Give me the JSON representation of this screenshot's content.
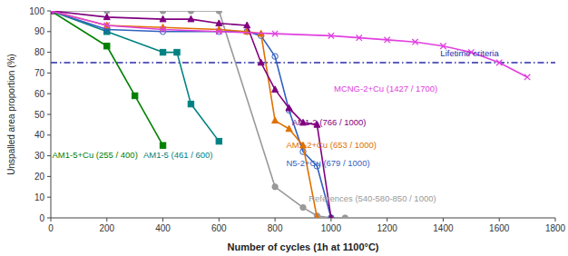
{
  "chart_data": {
    "type": "line",
    "xlabel": "Number of cycles (1h at 1100°C)",
    "ylabel": "Unspalled area proportion (%)",
    "xlim": [
      0,
      1800
    ],
    "ylim": [
      0,
      100
    ],
    "xticks": [
      0,
      200,
      400,
      600,
      800,
      1000,
      1200,
      1400,
      1600,
      1800
    ],
    "yticks": [
      0,
      10,
      20,
      30,
      40,
      50,
      60,
      70,
      80,
      90,
      100
    ],
    "grid": false,
    "series": [
      {
        "color": "#008000",
        "marker": "square",
        "x": [
          0,
          200,
          300,
          400
        ],
        "values": [
          100,
          83,
          59,
          35
        ]
      },
      {
        "color": "#008080",
        "marker": "square",
        "x": [
          0,
          200,
          400,
          450,
          500,
          600
        ],
        "values": [
          100,
          90,
          80,
          80,
          55,
          37
        ]
      },
      {
        "color": "#999999",
        "marker": "circle",
        "x": [
          0,
          200,
          400,
          500,
          600,
          800,
          900,
          950,
          1000,
          1050
        ],
        "values": [
          100,
          100,
          100,
          100,
          100,
          15,
          5,
          1,
          0,
          0
        ]
      },
      {
        "color": "#3060C0",
        "marker": "open-circle",
        "x": [
          0,
          200,
          400,
          600,
          700,
          750,
          800,
          850,
          900,
          950,
          1000
        ],
        "values": [
          100,
          91,
          90,
          90,
          90,
          88,
          78,
          52,
          32,
          25,
          0
        ]
      },
      {
        "color": "#E07000",
        "marker": "triangle",
        "x": [
          0,
          200,
          400,
          600,
          700,
          750,
          800,
          850,
          900,
          950
        ],
        "values": [
          100,
          93,
          92,
          91,
          90,
          89,
          47,
          43,
          35,
          0
        ]
      },
      {
        "color": "#800080",
        "marker": "triangle",
        "x": [
          0,
          200,
          400,
          500,
          600,
          700,
          750,
          800,
          850,
          900,
          950,
          1000
        ],
        "values": [
          100,
          97,
          96,
          96,
          94,
          93,
          75,
          62,
          53,
          46,
          45,
          0
        ]
      },
      {
        "color": "#E040E0",
        "marker": "x",
        "x": [
          0,
          200,
          400,
          600,
          800,
          1000,
          1100,
          1200,
          1300,
          1400,
          1500,
          1600,
          1700
        ],
        "values": [
          100,
          93,
          91,
          90,
          89,
          88,
          87,
          86,
          85,
          83,
          80,
          75,
          68
        ]
      }
    ],
    "reference_lines": [
      {
        "y": 75,
        "color": "#2B2BAA",
        "line_style": "dashdot"
      }
    ],
    "annotations": [
      {
        "x": 1390,
        "y": 77,
        "text": "Lifetime criteria",
        "color": "#2B2BAA"
      },
      {
        "x": 1010,
        "y": 60,
        "text": "MCNG-2+Cu (1427 / 1700)",
        "color": "#E040E0"
      },
      {
        "x": 860,
        "y": 44,
        "text": "AM1-2 (766 / 1000)",
        "color": "#800080"
      },
      {
        "x": 840,
        "y": 33,
        "text": "AM1-2+Cu (653 / 1000)",
        "color": "#E07000"
      },
      {
        "x": 840,
        "y": 24,
        "text": "N5-2+Cu (679 / 1000)",
        "color": "#3060C0"
      },
      {
        "x": 920,
        "y": 7,
        "text": "References (540-580-850 / 1000)",
        "color": "#999999"
      },
      {
        "x": 5,
        "y": 28,
        "text": "AM1-5+Cu (255 / 400)",
        "color": "#008000"
      },
      {
        "x": 330,
        "y": 28,
        "text": "AM1-5 (461 / 600)",
        "color": "#008080"
      }
    ]
  }
}
